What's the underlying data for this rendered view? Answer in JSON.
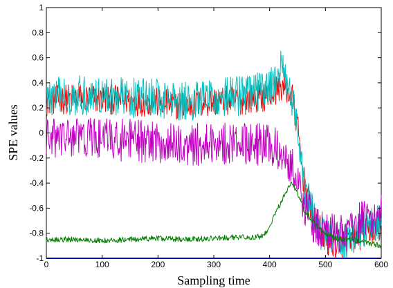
{
  "chart_data": {
    "type": "line",
    "title": "",
    "xlabel": "Sampling time",
    "ylabel": "SPE values",
    "xlim": [
      0,
      600
    ],
    "ylim": [
      -1,
      1
    ],
    "xticks": [
      0,
      100,
      200,
      300,
      400,
      500,
      600
    ],
    "xtick_labels": [
      "0",
      "100",
      "200",
      "300",
      "400",
      "500",
      "600"
    ],
    "yticks": [
      -1,
      -0.8,
      -0.6,
      -0.4,
      -0.2,
      0,
      0.2,
      0.4,
      0.6,
      0.8,
      1
    ],
    "ytick_labels": [
      "-1",
      "-0.8",
      "-0.6",
      "-0.4",
      "-0.2",
      "0",
      "0.2",
      "0.4",
      "0.6",
      "0.8",
      "1"
    ],
    "grid": false,
    "series": [
      {
        "color": "#ff0000",
        "x": [
          0,
          50,
          100,
          150,
          200,
          250,
          300,
          350,
          400,
          420,
          440,
          450,
          460,
          480,
          500,
          520,
          540,
          560,
          580,
          600
        ],
        "y": [
          0.25,
          0.28,
          0.27,
          0.26,
          0.24,
          0.22,
          0.25,
          0.26,
          0.3,
          0.38,
          0.3,
          0.05,
          -0.35,
          -0.7,
          -0.85,
          -0.9,
          -0.88,
          -0.82,
          -0.78,
          -0.76
        ],
        "noise": 0.12
      },
      {
        "color": "#00bfbf",
        "x": [
          0,
          50,
          100,
          150,
          200,
          250,
          300,
          350,
          400,
          420,
          440,
          450,
          460,
          480,
          500,
          520,
          540,
          560,
          580,
          600
        ],
        "y": [
          0.28,
          0.3,
          0.3,
          0.28,
          0.28,
          0.25,
          0.28,
          0.3,
          0.35,
          0.5,
          0.3,
          0.0,
          -0.4,
          -0.7,
          -0.82,
          -0.86,
          -0.84,
          -0.8,
          -0.74,
          -0.7
        ],
        "noise": 0.16
      },
      {
        "color": "#bf00bf",
        "x": [
          0,
          50,
          100,
          150,
          200,
          250,
          300,
          350,
          400,
          420,
          440,
          450,
          460,
          480,
          500,
          520,
          540,
          560,
          580,
          600
        ],
        "y": [
          -0.05,
          -0.03,
          -0.05,
          -0.06,
          -0.08,
          -0.1,
          -0.08,
          -0.08,
          -0.1,
          -0.15,
          -0.25,
          -0.35,
          -0.55,
          -0.72,
          -0.8,
          -0.82,
          -0.78,
          -0.72,
          -0.66,
          -0.64
        ],
        "noise": 0.17
      },
      {
        "color": "#007f00",
        "x": [
          0,
          50,
          100,
          150,
          200,
          250,
          300,
          350,
          380,
          390,
          400,
          410,
          420,
          430,
          440,
          450,
          460,
          480,
          500,
          520,
          540,
          560,
          580,
          600
        ],
        "y": [
          -0.85,
          -0.85,
          -0.86,
          -0.85,
          -0.84,
          -0.85,
          -0.84,
          -0.83,
          -0.83,
          -0.82,
          -0.74,
          -0.64,
          -0.56,
          -0.46,
          -0.4,
          -0.48,
          -0.6,
          -0.72,
          -0.8,
          -0.84,
          -0.85,
          -0.86,
          -0.88,
          -0.9
        ],
        "noise": 0.022
      },
      {
        "color": "#0000bf",
        "x": [
          0,
          600
        ],
        "y": [
          -1,
          -1
        ],
        "noise": 0
      }
    ]
  }
}
